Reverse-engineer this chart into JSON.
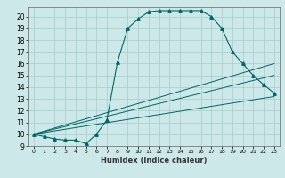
{
  "xlabel": "Humidex (Indice chaleur)",
  "bg_color": "#cce8e8",
  "grid_color": "#aacccc",
  "line_color": "#006666",
  "xlim": [
    -0.5,
    23.5
  ],
  "ylim": [
    9.0,
    20.8
  ],
  "yticks": [
    9,
    10,
    11,
    12,
    13,
    14,
    15,
    16,
    17,
    18,
    19,
    20
  ],
  "xticks": [
    0,
    1,
    2,
    3,
    4,
    5,
    6,
    7,
    8,
    9,
    10,
    11,
    12,
    13,
    14,
    15,
    16,
    17,
    18,
    19,
    20,
    21,
    22,
    23
  ],
  "main_x": [
    0,
    1,
    2,
    3,
    4,
    5,
    6,
    7,
    8,
    9,
    10,
    11,
    12,
    13,
    14,
    15,
    16,
    17,
    18,
    19,
    20,
    21,
    22,
    23
  ],
  "main_y": [
    10.0,
    9.8,
    9.6,
    9.5,
    9.5,
    9.2,
    10.0,
    11.2,
    16.1,
    19.0,
    19.8,
    20.4,
    20.5,
    20.5,
    20.5,
    20.5,
    20.5,
    20.0,
    19.0,
    17.0,
    16.0,
    15.0,
    14.2,
    13.5
  ],
  "line2_x": [
    0,
    23
  ],
  "line2_y": [
    10.0,
    16.0
  ],
  "line3_x": [
    0,
    23
  ],
  "line3_y": [
    10.0,
    13.2
  ],
  "line4_x": [
    0,
    23
  ],
  "line4_y": [
    10.0,
    15.0
  ]
}
